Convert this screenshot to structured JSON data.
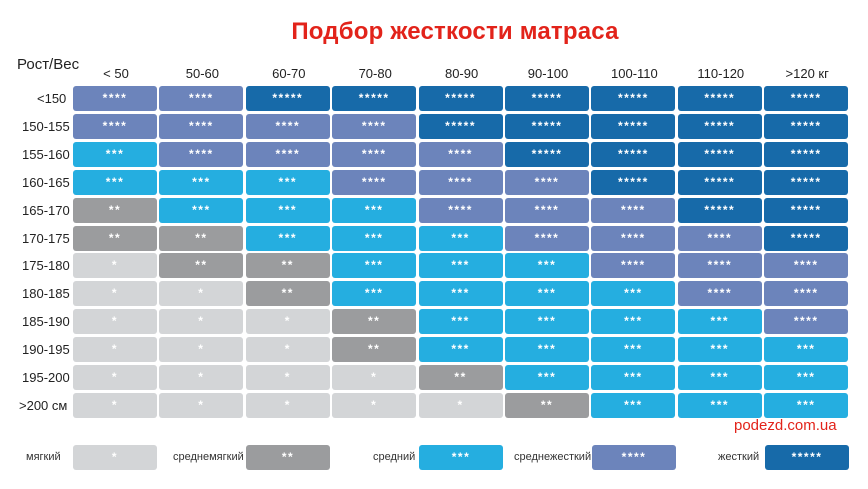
{
  "chart_data": {
    "type": "heatmap",
    "title": "Подбор жесткости матраса",
    "corner_label": "Рост/Вес",
    "columns": [
      "< 50",
      "50-60",
      "60-70",
      "70-80",
      "80-90",
      "90-100",
      "100-110",
      "110-120",
      ">120 кг"
    ],
    "rows": [
      "<150",
      "150-155",
      "155-160",
      "160-165",
      "165-170",
      "170-175",
      "175-180",
      "180-185",
      "185-190",
      "190-195",
      "195-200",
      ">200 см"
    ],
    "values": [
      [
        4,
        4,
        5,
        5,
        5,
        5,
        5,
        5,
        5
      ],
      [
        4,
        4,
        4,
        4,
        5,
        5,
        5,
        5,
        5
      ],
      [
        3,
        4,
        4,
        4,
        4,
        5,
        5,
        5,
        5
      ],
      [
        3,
        3,
        3,
        4,
        4,
        4,
        5,
        5,
        5
      ],
      [
        2,
        3,
        3,
        3,
        4,
        4,
        4,
        5,
        5
      ],
      [
        2,
        2,
        3,
        3,
        3,
        4,
        4,
        4,
        5
      ],
      [
        1,
        2,
        2,
        3,
        3,
        3,
        4,
        4,
        4
      ],
      [
        1,
        1,
        2,
        3,
        3,
        3,
        3,
        4,
        4
      ],
      [
        1,
        1,
        1,
        2,
        3,
        3,
        3,
        3,
        4
      ],
      [
        1,
        1,
        1,
        2,
        3,
        3,
        3,
        3,
        3
      ],
      [
        1,
        1,
        1,
        1,
        2,
        3,
        3,
        3,
        3
      ],
      [
        1,
        1,
        1,
        1,
        1,
        2,
        3,
        3,
        3
      ]
    ],
    "symbols": {
      "1": "*",
      "2": "**",
      "3": "***",
      "4": "****",
      "5": "*****"
    },
    "legend": [
      {
        "level": 1,
        "label": "мягкий",
        "symbol": "*"
      },
      {
        "level": 2,
        "label": "среднемягкий",
        "symbol": "**"
      },
      {
        "level": 3,
        "label": "средний",
        "symbol": "***"
      },
      {
        "level": 4,
        "label": "среднежесткий",
        "symbol": "****"
      },
      {
        "level": 5,
        "label": "жесткий",
        "symbol": "*****"
      }
    ],
    "colors": {
      "1": "#d3d5d7",
      "2": "#9b9c9e",
      "3": "#25aee0",
      "4": "#6c84bb",
      "5": "#176aa9"
    }
  },
  "source": "podezd.com.ua"
}
